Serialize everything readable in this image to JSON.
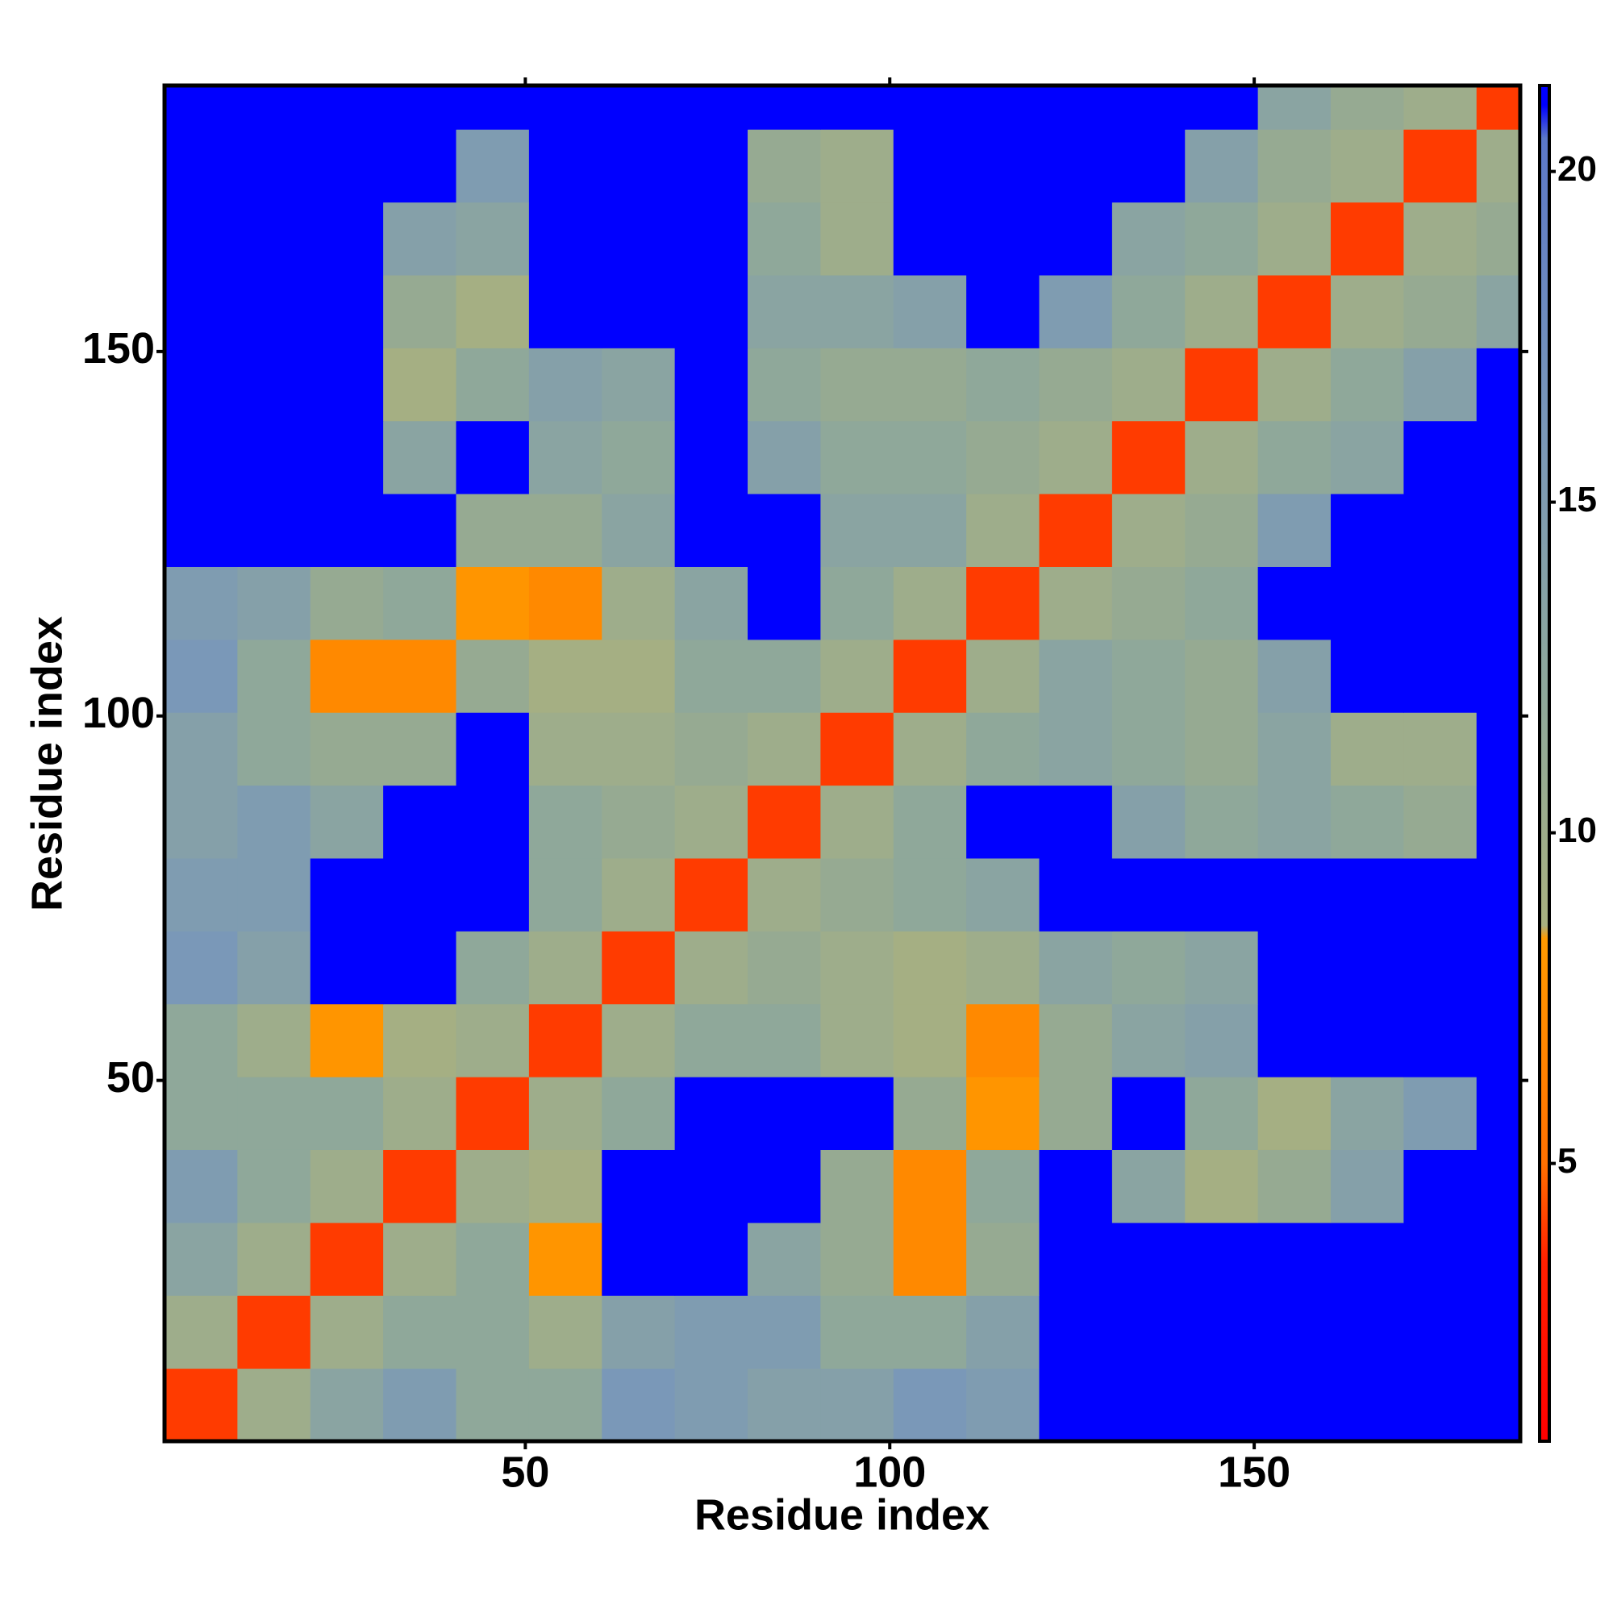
{
  "chart_data": {
    "type": "heatmap",
    "xlabel": "Residue index",
    "ylabel": "Residue index",
    "xbins": [
      0.5,
      10.5,
      20.5,
      30.5,
      40.5,
      50.5,
      60.5,
      70.5,
      80.5,
      90.5,
      100.5,
      110.5,
      120.5,
      130.5,
      140.5,
      150.5,
      160.5,
      170.5,
      180.5,
      186.5
    ],
    "ybins": [
      0.5,
      10.5,
      20.5,
      30.5,
      40.5,
      50.5,
      60.5,
      70.5,
      80.5,
      90.5,
      100.5,
      110.5,
      120.5,
      130.5,
      140.5,
      150.5,
      160.5,
      170.5,
      180.5,
      186.5
    ],
    "z": [
      [
        4,
        10,
        13,
        15,
        12,
        12,
        16,
        15,
        14,
        14,
        16,
        15,
        21,
        21,
        21,
        21,
        21,
        21,
        21
      ],
      [
        10,
        4,
        10,
        12,
        12,
        10,
        14,
        15,
        15,
        12,
        12,
        14,
        21,
        21,
        21,
        21,
        21,
        21,
        21
      ],
      [
        13,
        10,
        4,
        10,
        12,
        8,
        21,
        21,
        13,
        11,
        7,
        11,
        21,
        21,
        21,
        21,
        21,
        21,
        21
      ],
      [
        15,
        12,
        10,
        4,
        10,
        9,
        21,
        21,
        21,
        11,
        7,
        12,
        21,
        13,
        9,
        11,
        14,
        21,
        21
      ],
      [
        12,
        12,
        12,
        10,
        4,
        10,
        12,
        21,
        21,
        21,
        11,
        8,
        11,
        21,
        12,
        9,
        13,
        15,
        21
      ],
      [
        12,
        10,
        8,
        9,
        10,
        4,
        10,
        12,
        12,
        10,
        9,
        7,
        11,
        13,
        14,
        21,
        21,
        21,
        21
      ],
      [
        16,
        14,
        21,
        21,
        12,
        10,
        4,
        10,
        11,
        10,
        9,
        10,
        13,
        12,
        13,
        21,
        21,
        21,
        21
      ],
      [
        15,
        15,
        21,
        21,
        21,
        12,
        10,
        4,
        10,
        11,
        12,
        13,
        21,
        21,
        21,
        21,
        21,
        21,
        21
      ],
      [
        14,
        15,
        13,
        21,
        21,
        12,
        11,
        10,
        4,
        10,
        12,
        21,
        21,
        14,
        12,
        13,
        12,
        11,
        21
      ],
      [
        14,
        12,
        11,
        11,
        21,
        10,
        10,
        11,
        10,
        4,
        10,
        12,
        13,
        12,
        11,
        13,
        10,
        10,
        21
      ],
      [
        16,
        12,
        7,
        7,
        11,
        9,
        9,
        12,
        12,
        10,
        4,
        10,
        13,
        12,
        11,
        14,
        21,
        21,
        21
      ],
      [
        15,
        14,
        11,
        12,
        8,
        7,
        10,
        13,
        21,
        12,
        10,
        4,
        10,
        11,
        12,
        21,
        21,
        21,
        21
      ],
      [
        21,
        21,
        21,
        21,
        11,
        11,
        13,
        21,
        21,
        13,
        13,
        10,
        4,
        10,
        11,
        15,
        21,
        21,
        21
      ],
      [
        21,
        21,
        21,
        13,
        21,
        13,
        12,
        21,
        14,
        12,
        12,
        11,
        10,
        4,
        10,
        12,
        13,
        21,
        21
      ],
      [
        21,
        21,
        21,
        9,
        12,
        14,
        13,
        21,
        12,
        11,
        11,
        12,
        11,
        10,
        4,
        10,
        12,
        14,
        21
      ],
      [
        21,
        21,
        21,
        11,
        9,
        21,
        21,
        21,
        13,
        13,
        14,
        21,
        15,
        12,
        10,
        4,
        10,
        11,
        13
      ],
      [
        21,
        21,
        21,
        14,
        13,
        21,
        21,
        21,
        12,
        10,
        21,
        21,
        21,
        13,
        12,
        10,
        4,
        10,
        11
      ],
      [
        21,
        21,
        21,
        21,
        15,
        21,
        21,
        21,
        11,
        10,
        21,
        21,
        21,
        21,
        14,
        11,
        10,
        4,
        10
      ],
      [
        21,
        21,
        21,
        21,
        21,
        21,
        21,
        21,
        21,
        21,
        21,
        21,
        21,
        21,
        21,
        13,
        11,
        10,
        4
      ]
    ],
    "xlim": [
      0.5,
      186.5
    ],
    "ylim": [
      0.5,
      186.5
    ],
    "xticks": [
      50,
      100,
      150
    ],
    "yticks": [
      50,
      100,
      150
    ],
    "colorbar": {
      "lim": [
        0.8,
        21.3
      ],
      "ticks": [
        5,
        10,
        15,
        20
      ],
      "stops": [
        {
          "value": 0.8,
          "color": "#ff0000"
        },
        {
          "value": 3.5,
          "color": "#ff2000"
        },
        {
          "value": 5,
          "color": "#ff7000"
        },
        {
          "value": 8.4,
          "color": "#ff9a00"
        },
        {
          "value": 8.6,
          "color": "#a8b080"
        },
        {
          "value": 12,
          "color": "#8fa89a"
        },
        {
          "value": 16,
          "color": "#7a98b8"
        },
        {
          "value": 20.5,
          "color": "#5c78c8"
        },
        {
          "value": 21,
          "color": "#0000ff"
        }
      ]
    }
  }
}
